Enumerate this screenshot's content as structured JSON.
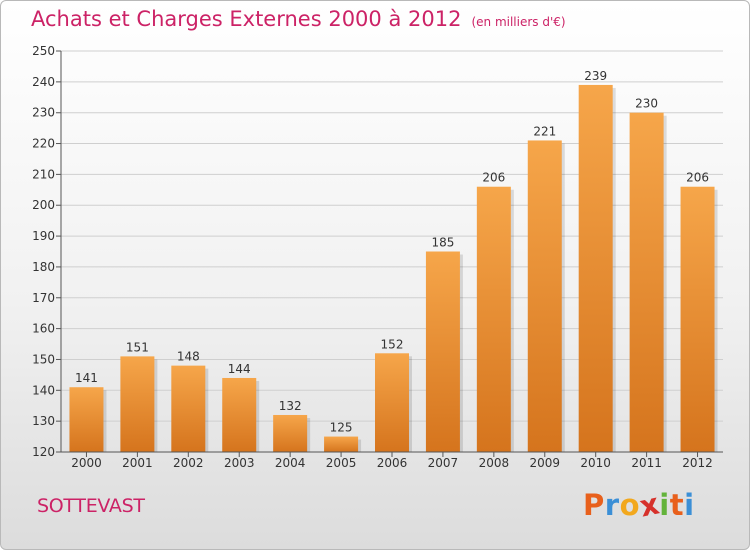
{
  "header": {
    "title": "Achats et Charges Externes 2000 à 2012",
    "unit": "(en milliers d'€)"
  },
  "footer": {
    "commune": "SOTTEVAST",
    "logo": {
      "letters": [
        "P",
        "r",
        "o",
        "x",
        "i",
        "t",
        "i"
      ],
      "colors": [
        "#e8601c",
        "#3b8fd6",
        "#f2a81d",
        "#d6312b",
        "#63b33b",
        "#e8601c",
        "#3b8fd6"
      ]
    }
  },
  "colors": {
    "title": "#cc2266",
    "bar_top": "#f6a64a",
    "bar_bottom": "#d5741d",
    "grid": "#cfcfcf"
  },
  "chart_data": {
    "type": "bar",
    "title": "Achats et Charges Externes 2000 à 2012",
    "subtitle": "(en milliers d'€)",
    "xlabel": "",
    "ylabel": "",
    "categories": [
      "2000",
      "2001",
      "2002",
      "2003",
      "2004",
      "2005",
      "2006",
      "2007",
      "2008",
      "2009",
      "2010",
      "2011",
      "2012"
    ],
    "values": [
      141,
      151,
      148,
      144,
      132,
      125,
      152,
      185,
      206,
      221,
      239,
      230,
      206
    ],
    "ylim": [
      120,
      250
    ],
    "yticks": [
      120,
      130,
      140,
      150,
      160,
      170,
      180,
      190,
      200,
      210,
      220,
      230,
      240,
      250
    ],
    "grid": true,
    "data_labels": true
  }
}
